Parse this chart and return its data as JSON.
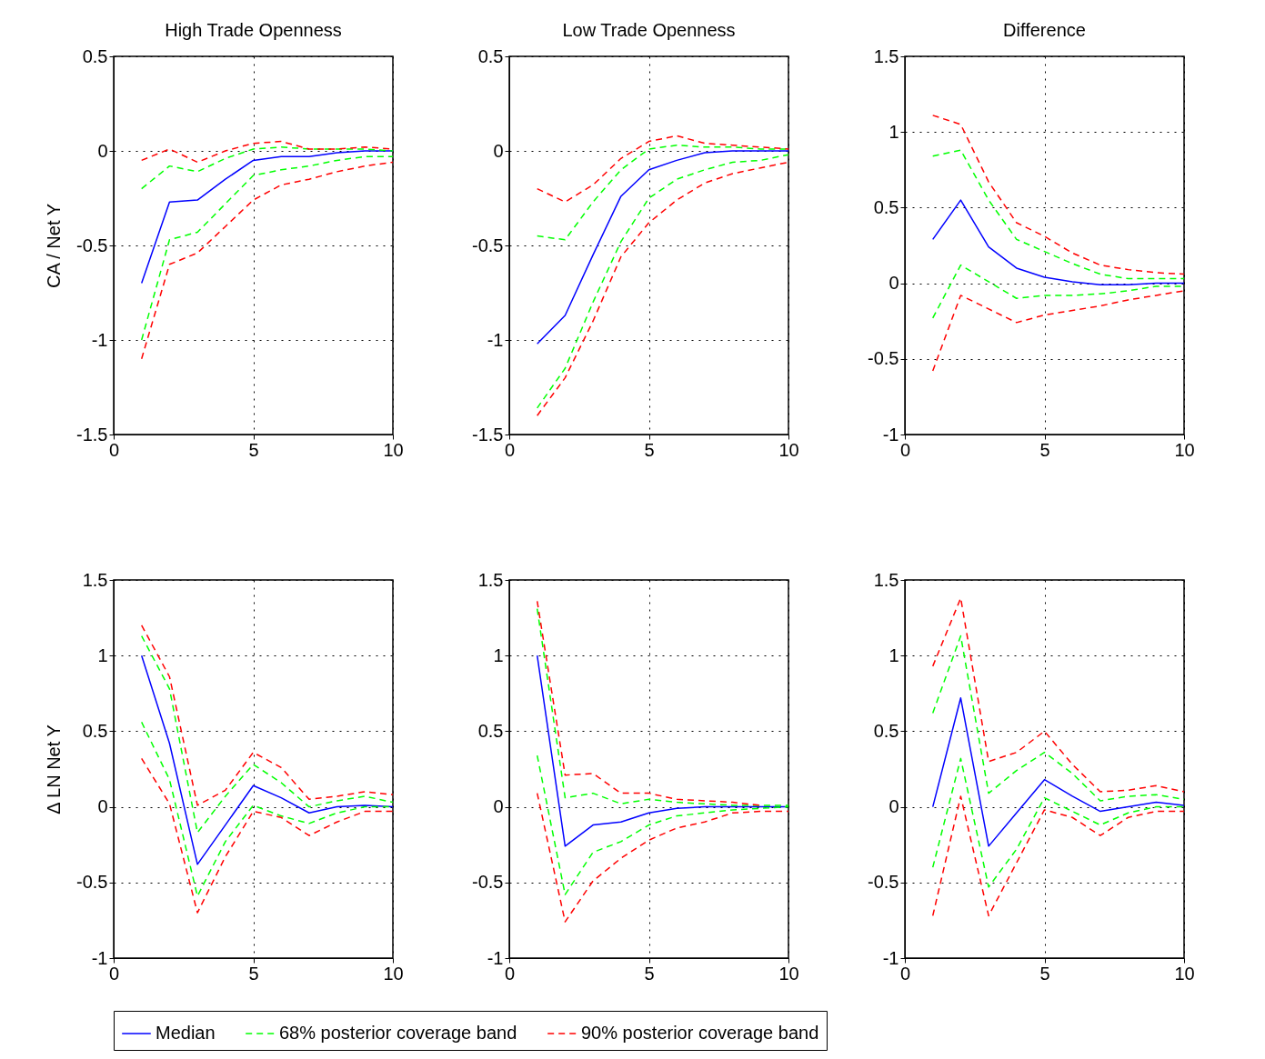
{
  "chart_data": [
    {
      "type": "line",
      "title": "High Trade Openness",
      "ylabel": "CA / Net Y",
      "x": [
        1,
        2,
        3,
        4,
        5,
        6,
        7,
        8,
        9,
        10
      ],
      "xlim": [
        0,
        10
      ],
      "xticks": [
        0,
        5,
        10
      ],
      "ylim": [
        -1.5,
        0.5
      ],
      "yticks": [
        -1.5,
        -1,
        -0.5,
        0,
        0.5
      ],
      "grid": true,
      "legend": "bottom",
      "series": [
        {
          "name": "Median",
          "color": "#0000ff",
          "line_style": "solid",
          "values": [
            -0.7,
            -0.27,
            -0.26,
            -0.15,
            -0.05,
            -0.03,
            -0.03,
            -0.01,
            0,
            0
          ]
        },
        {
          "name": "68% posterior coverage band",
          "color": "#00ff00",
          "line_style": "dashed",
          "values": [
            -0.2,
            -0.08,
            -0.11,
            -0.04,
            0.01,
            0.02,
            0.01,
            0.01,
            0.01,
            0
          ]
        },
        {
          "color": "#00ff00",
          "line_style": "dashed",
          "values": [
            -1.0,
            -0.47,
            -0.43,
            -0.28,
            -0.13,
            -0.1,
            -0.08,
            -0.05,
            -0.03,
            -0.03
          ]
        },
        {
          "name": "90% posterior coverage band",
          "color": "#ff0000",
          "line_style": "dashed",
          "values": [
            -0.05,
            0.01,
            -0.06,
            0,
            0.04,
            0.05,
            0.01,
            0.01,
            0.02,
            0.01
          ]
        },
        {
          "color": "#ff0000",
          "line_style": "dashed",
          "values": [
            -1.1,
            -0.6,
            -0.54,
            -0.4,
            -0.26,
            -0.18,
            -0.15,
            -0.11,
            -0.08,
            -0.06
          ]
        }
      ]
    },
    {
      "type": "line",
      "title": "Low Trade Openness",
      "x": [
        1,
        2,
        3,
        4,
        5,
        6,
        7,
        8,
        9,
        10
      ],
      "xlim": [
        0,
        10
      ],
      "xticks": [
        0,
        5,
        10
      ],
      "ylim": [
        -1.5,
        0.5
      ],
      "yticks": [
        -1.5,
        -1,
        -0.5,
        0,
        0.5
      ],
      "grid": true,
      "legend": "bottom",
      "series": [
        {
          "name": "Median",
          "color": "#0000ff",
          "line_style": "solid",
          "values": [
            -1.02,
            -0.87,
            -0.55,
            -0.24,
            -0.1,
            -0.05,
            -0.01,
            0,
            0,
            0
          ]
        },
        {
          "name": "68% posterior coverage band",
          "color": "#00ff00",
          "line_style": "dashed",
          "values": [
            -0.45,
            -0.47,
            -0.27,
            -0.1,
            0.01,
            0.03,
            0.02,
            0.02,
            0.01,
            0.01
          ]
        },
        {
          "color": "#00ff00",
          "line_style": "dashed",
          "values": [
            -1.36,
            -1.15,
            -0.8,
            -0.48,
            -0.25,
            -0.15,
            -0.1,
            -0.06,
            -0.05,
            -0.02
          ]
        },
        {
          "name": "90% posterior coverage band",
          "color": "#ff0000",
          "line_style": "dashed",
          "values": [
            -0.2,
            -0.27,
            -0.18,
            -0.04,
            0.05,
            0.08,
            0.04,
            0.03,
            0.02,
            0.01
          ]
        },
        {
          "color": "#ff0000",
          "line_style": "dashed",
          "values": [
            -1.4,
            -1.2,
            -0.9,
            -0.56,
            -0.38,
            -0.26,
            -0.17,
            -0.12,
            -0.09,
            -0.06
          ]
        }
      ]
    },
    {
      "type": "line",
      "title": "Difference",
      "x": [
        1,
        2,
        3,
        4,
        5,
        6,
        7,
        8,
        9,
        10
      ],
      "xlim": [
        0,
        10
      ],
      "xticks": [
        0,
        5,
        10
      ],
      "ylim": [
        -1,
        1.5
      ],
      "yticks": [
        -1,
        -0.5,
        0,
        0.5,
        1,
        1.5
      ],
      "grid": true,
      "legend": "bottom",
      "series": [
        {
          "name": "Median",
          "color": "#0000ff",
          "line_style": "solid",
          "values": [
            0.29,
            0.55,
            0.24,
            0.1,
            0.04,
            0.01,
            -0.01,
            -0.01,
            0,
            0
          ]
        },
        {
          "name": "68% posterior coverage band",
          "color": "#00ff00",
          "line_style": "dashed",
          "values": [
            0.84,
            0.88,
            0.55,
            0.29,
            0.21,
            0.13,
            0.06,
            0.03,
            0.03,
            0.03
          ]
        },
        {
          "color": "#00ff00",
          "line_style": "dashed",
          "values": [
            -0.23,
            0.12,
            0.01,
            -0.1,
            -0.08,
            -0.08,
            -0.07,
            -0.05,
            -0.02,
            -0.02
          ]
        },
        {
          "name": "90% posterior coverage band",
          "color": "#ff0000",
          "line_style": "dashed",
          "values": [
            1.11,
            1.05,
            0.67,
            0.4,
            0.31,
            0.2,
            0.12,
            0.09,
            0.07,
            0.06
          ]
        },
        {
          "color": "#ff0000",
          "line_style": "dashed",
          "values": [
            -0.58,
            -0.08,
            -0.17,
            -0.26,
            -0.21,
            -0.18,
            -0.15,
            -0.11,
            -0.08,
            -0.05
          ]
        }
      ]
    },
    {
      "type": "line",
      "ylabel": "Δ LN Net Y",
      "x": [
        1,
        2,
        3,
        4,
        5,
        6,
        7,
        8,
        9,
        10
      ],
      "xlim": [
        0,
        10
      ],
      "xticks": [
        0,
        5,
        10
      ],
      "ylim": [
        -1,
        1.5
      ],
      "yticks": [
        -1,
        -0.5,
        0,
        0.5,
        1,
        1.5
      ],
      "grid": true,
      "legend": "bottom",
      "series": [
        {
          "name": "Median",
          "color": "#0000ff",
          "line_style": "solid",
          "values": [
            1.0,
            0.42,
            -0.38,
            -0.12,
            0.14,
            0.06,
            -0.04,
            0,
            0.01,
            0
          ]
        },
        {
          "name": "68% posterior coverage band",
          "color": "#00ff00",
          "line_style": "dashed",
          "values": [
            1.13,
            0.78,
            -0.17,
            0.07,
            0.28,
            0.16,
            0,
            0.04,
            0.07,
            0.03
          ]
        },
        {
          "color": "#00ff00",
          "line_style": "dashed",
          "values": [
            0.56,
            0.18,
            -0.59,
            -0.23,
            0.01,
            -0.06,
            -0.11,
            -0.04,
            0,
            0
          ]
        },
        {
          "name": "90% posterior coverage band",
          "color": "#ff0000",
          "line_style": "dashed",
          "values": [
            1.2,
            0.86,
            0.01,
            0.11,
            0.36,
            0.26,
            0.05,
            0.07,
            0.1,
            0.08
          ]
        },
        {
          "color": "#ff0000",
          "line_style": "dashed",
          "values": [
            0.32,
            0.02,
            -0.7,
            -0.33,
            -0.03,
            -0.07,
            -0.19,
            -0.1,
            -0.03,
            -0.03
          ]
        }
      ]
    },
    {
      "type": "line",
      "x": [
        1,
        2,
        3,
        4,
        5,
        6,
        7,
        8,
        9,
        10
      ],
      "xlim": [
        0,
        10
      ],
      "xticks": [
        0,
        5,
        10
      ],
      "ylim": [
        -1,
        1.5
      ],
      "yticks": [
        -1,
        -0.5,
        0,
        0.5,
        1,
        1.5
      ],
      "grid": true,
      "legend": "bottom",
      "series": [
        {
          "name": "Median",
          "color": "#0000ff",
          "line_style": "solid",
          "values": [
            1.0,
            -0.26,
            -0.12,
            -0.1,
            -0.04,
            -0.01,
            0,
            0,
            0,
            0
          ]
        },
        {
          "name": "68% posterior coverage band",
          "color": "#00ff00",
          "line_style": "dashed",
          "values": [
            1.31,
            0.06,
            0.09,
            0.02,
            0.05,
            0.03,
            0.02,
            0.01,
            0.01,
            0.01
          ]
        },
        {
          "color": "#00ff00",
          "line_style": "dashed",
          "values": [
            0.34,
            -0.58,
            -0.3,
            -0.23,
            -0.12,
            -0.06,
            -0.04,
            -0.02,
            -0.01,
            0
          ]
        },
        {
          "name": "90% posterior coverage band",
          "color": "#ff0000",
          "line_style": "dashed",
          "values": [
            1.36,
            0.21,
            0.22,
            0.09,
            0.09,
            0.05,
            0.04,
            0.03,
            0.01,
            null
          ]
        },
        {
          "color": "#ff0000",
          "line_style": "dashed",
          "values": [
            0.09,
            -0.76,
            -0.49,
            -0.34,
            -0.22,
            -0.14,
            -0.1,
            -0.04,
            -0.03,
            -0.03
          ]
        }
      ]
    },
    {
      "type": "line",
      "x": [
        1,
        2,
        3,
        4,
        5,
        6,
        7,
        8,
        9,
        10
      ],
      "xlim": [
        0,
        10
      ],
      "xticks": [
        0,
        5,
        10
      ],
      "ylim": [
        -1,
        1.5
      ],
      "yticks": [
        -1,
        -0.5,
        0,
        0.5,
        1,
        1.5
      ],
      "grid": true,
      "legend": "bottom",
      "series": [
        {
          "name": "Median",
          "color": "#0000ff",
          "line_style": "solid",
          "values": [
            0,
            0.72,
            -0.26,
            -0.04,
            0.18,
            0.07,
            -0.03,
            0,
            0.03,
            0.01
          ]
        },
        {
          "name": "68% posterior coverage band",
          "color": "#00ff00",
          "line_style": "dashed",
          "values": [
            0.62,
            1.13,
            0.09,
            0.24,
            0.36,
            0.22,
            0.04,
            0.07,
            0.08,
            0.05
          ]
        },
        {
          "color": "#00ff00",
          "line_style": "dashed",
          "values": [
            -0.4,
            0.32,
            -0.53,
            -0.28,
            0.06,
            -0.03,
            -0.12,
            -0.04,
            0,
            0
          ]
        },
        {
          "name": "90% posterior coverage band",
          "color": "#ff0000",
          "line_style": "dashed",
          "values": [
            0.93,
            1.38,
            0.3,
            0.36,
            0.5,
            0.28,
            0.1,
            0.11,
            0.14,
            0.1
          ]
        },
        {
          "color": "#ff0000",
          "line_style": "dashed",
          "values": [
            -0.72,
            0.07,
            -0.72,
            -0.37,
            -0.02,
            -0.07,
            -0.19,
            -0.07,
            -0.03,
            -0.03
          ]
        }
      ]
    }
  ]
}
